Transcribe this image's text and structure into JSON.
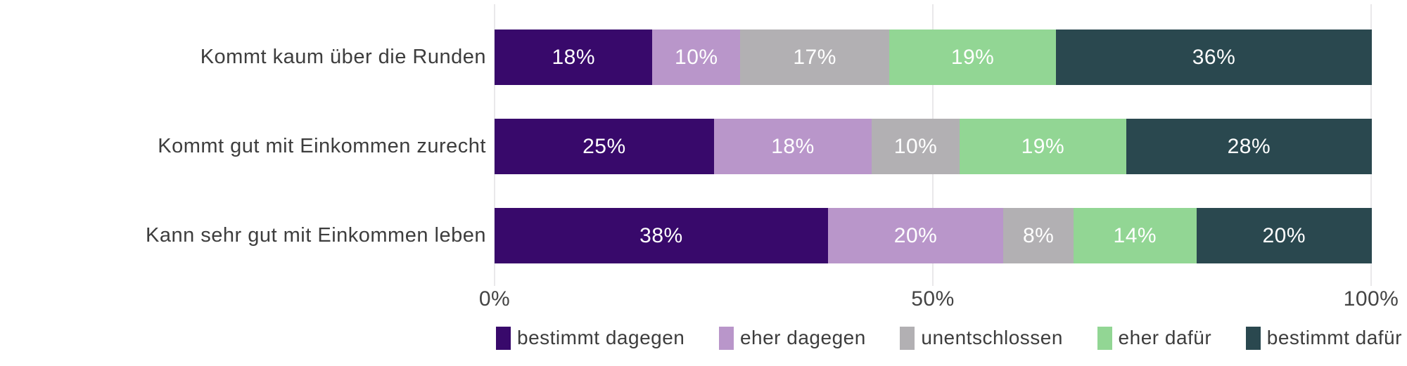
{
  "chart_data": {
    "type": "bar",
    "orientation": "horizontal",
    "stacked": true,
    "title": "",
    "xlabel": "",
    "ylabel": "",
    "value_suffix": "%",
    "categories": [
      "Kommt kaum über die Runden",
      "Kommt gut mit Einkommen zurecht",
      "Kann sehr gut mit Einkommen leben"
    ],
    "series": [
      {
        "name": "bestimmt dagegen",
        "color": "#38096b",
        "values": [
          18,
          25,
          38
        ]
      },
      {
        "name": "eher dagegen",
        "color": "#b996ca",
        "values": [
          10,
          18,
          20
        ]
      },
      {
        "name": "unentschlossen",
        "color": "#b2b0b3",
        "values": [
          17,
          10,
          8
        ]
      },
      {
        "name": "eher dafür",
        "color": "#92d694",
        "values": [
          19,
          19,
          14
        ]
      },
      {
        "name": "bestimmt dafür",
        "color": "#2a484f",
        "values": [
          36,
          28,
          20
        ]
      }
    ],
    "x_axis": {
      "range": [
        0,
        100
      ],
      "ticks": [
        "0%",
        "50%",
        "100%"
      ]
    },
    "grid": true,
    "legend_position": "bottom"
  },
  "style": {
    "background": "#ffffff",
    "gridline_color": "#e9e8ea",
    "label_color": "#3d3d3d",
    "bar_value_color": "#ffffff"
  }
}
